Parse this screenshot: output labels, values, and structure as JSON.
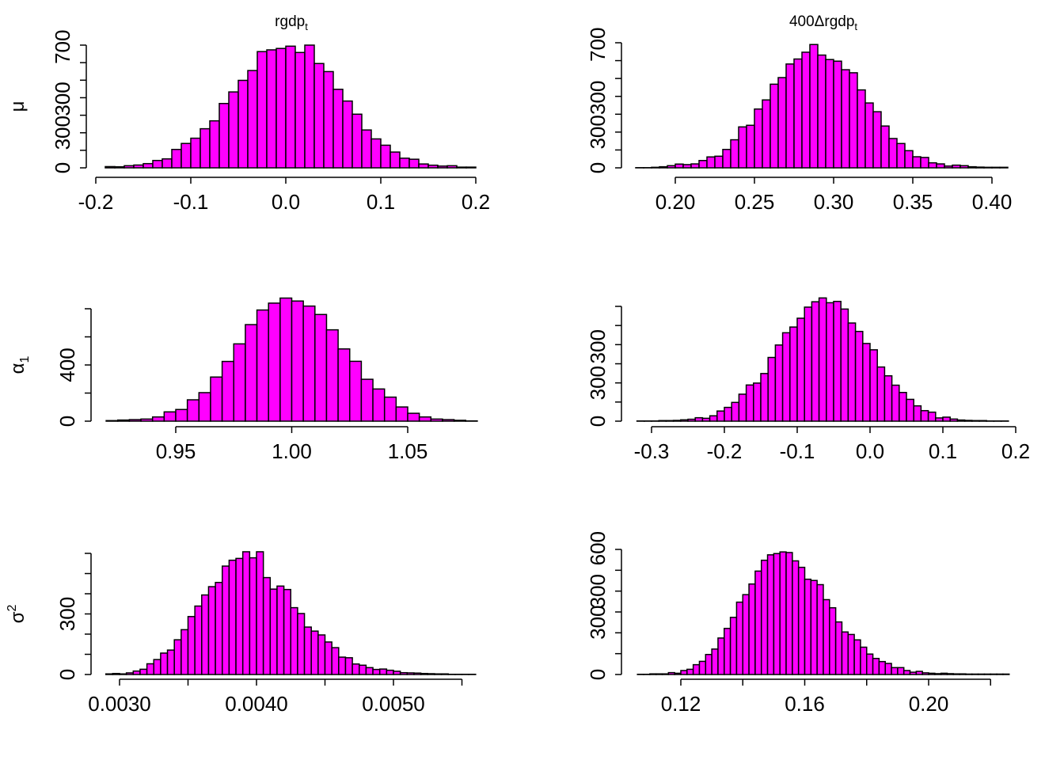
{
  "colors": {
    "bar_fill": "#ff00ff",
    "bar_edge": "#000000",
    "background": "#ffffff"
  },
  "chart_data": [
    {
      "type": "bar",
      "subtype": "histogram",
      "grid": false,
      "title": "rgdp",
      "title_sub": "t",
      "ylabel": "μ",
      "ylabel_script": "",
      "bin_start": -0.19,
      "bin_width": 0.01,
      "counts": [
        7,
        6,
        12,
        16,
        24,
        42,
        51,
        105,
        139,
        169,
        223,
        268,
        367,
        433,
        499,
        555,
        663,
        673,
        681,
        694,
        658,
        700,
        595,
        549,
        448,
        381,
        306,
        216,
        165,
        129,
        90,
        55,
        49,
        22,
        15,
        10,
        12,
        4,
        4
      ],
      "xlim": [
        -0.2,
        0.2
      ],
      "xticks": [
        {
          "v": -0.2,
          "label": "-0.2"
        },
        {
          "v": -0.1,
          "label": "-0.1"
        },
        {
          "v": 0.0,
          "label": "0.0"
        },
        {
          "v": 0.1,
          "label": "0.1"
        },
        {
          "v": 0.2,
          "label": "0.2"
        }
      ],
      "yticks": [
        0,
        100,
        200,
        300,
        400,
        500,
        600,
        700
      ],
      "ytick_labels": [
        {
          "v": 0,
          "label": "0"
        },
        {
          "v": 200,
          "label": "300"
        },
        {
          "v": 393,
          "label": "300"
        },
        {
          "v": 690,
          "label": "700"
        }
      ]
    },
    {
      "type": "bar",
      "subtype": "histogram",
      "grid": false,
      "title": "400Δrgdp",
      "title_sub": "t",
      "ylabel": "",
      "ylabel_script": "",
      "bin_start": 0.175,
      "bin_width": 0.005,
      "counts": [
        1,
        1,
        3,
        6,
        12,
        21,
        18,
        22,
        41,
        61,
        65,
        103,
        157,
        229,
        238,
        329,
        380,
        468,
        505,
        581,
        609,
        647,
        690,
        631,
        606,
        597,
        549,
        532,
        436,
        363,
        314,
        234,
        164,
        136,
        96,
        62,
        58,
        28,
        22,
        10,
        15,
        12,
        6,
        4,
        3,
        3,
        3
      ],
      "xlim": [
        0.2,
        0.4
      ],
      "xticks": [
        {
          "v": 0.2,
          "label": "0.20"
        },
        {
          "v": 0.25,
          "label": "0.25"
        },
        {
          "v": 0.3,
          "label": "0.30"
        },
        {
          "v": 0.35,
          "label": "0.35"
        },
        {
          "v": 0.4,
          "label": "0.40"
        }
      ],
      "yticks": [
        0,
        100,
        200,
        300,
        400,
        500,
        600,
        700
      ],
      "ytick_labels": [
        {
          "v": 0,
          "label": "0"
        },
        {
          "v": 200,
          "label": "300"
        },
        {
          "v": 393,
          "label": "300"
        },
        {
          "v": 690,
          "label": "700"
        }
      ]
    },
    {
      "type": "bar",
      "subtype": "histogram",
      "grid": false,
      "title": "",
      "title_sub": "",
      "ylabel": "α",
      "ylabel_script": "1",
      "ylabel_script_type": "sub",
      "bin_start": 0.92,
      "bin_width": 0.005,
      "counts": [
        4,
        8,
        11,
        15,
        30,
        66,
        83,
        152,
        203,
        314,
        425,
        550,
        687,
        791,
        840,
        876,
        855,
        819,
        759,
        650,
        514,
        426,
        298,
        229,
        171,
        101,
        56,
        30,
        15,
        11,
        6,
        2
      ],
      "xlim": [
        0.95,
        1.05
      ],
      "xticks": [
        {
          "v": 0.95,
          "label": "0.95"
        },
        {
          "v": 1.0,
          "label": "1.00"
        },
        {
          "v": 1.05,
          "label": "1.05"
        }
      ],
      "yticks": [
        0,
        200,
        400,
        600,
        800
      ],
      "ytick_labels": [
        {
          "v": 0,
          "label": "0"
        },
        {
          "v": 400,
          "label": "400"
        }
      ]
    },
    {
      "type": "bar",
      "subtype": "histogram",
      "grid": false,
      "title": "",
      "title_sub": "",
      "ylabel": "",
      "ylabel_script": "",
      "bin_start": -0.32,
      "bin_width": 0.01,
      "counts": [
        1,
        1,
        1,
        3,
        3,
        4,
        7,
        10,
        18,
        15,
        28,
        53,
        72,
        98,
        141,
        189,
        199,
        249,
        333,
        398,
        462,
        492,
        538,
        596,
        624,
        644,
        619,
        626,
        586,
        513,
        469,
        406,
        373,
        283,
        237,
        188,
        150,
        114,
        80,
        55,
        47,
        17,
        21,
        11,
        6,
        4,
        3,
        3,
        1,
        1,
        1
      ],
      "xlim": [
        -0.3,
        0.2
      ],
      "xticks": [
        {
          "v": -0.3,
          "label": "-0.3"
        },
        {
          "v": -0.2,
          "label": "-0.2"
        },
        {
          "v": -0.1,
          "label": "-0.1"
        },
        {
          "v": 0.0,
          "label": "0.0"
        },
        {
          "v": 0.1,
          "label": "0.1"
        },
        {
          "v": 0.2,
          "label": "0.2"
        }
      ],
      "yticks": [
        0,
        100,
        200,
        300,
        400,
        500,
        600
      ],
      "ytick_labels": [
        {
          "v": 0,
          "label": "0"
        },
        {
          "v": 200,
          "label": "300"
        },
        {
          "v": 390,
          "label": "300"
        }
      ]
    },
    {
      "type": "bar",
      "subtype": "histogram",
      "grid": false,
      "title": "",
      "title_sub": "",
      "ylabel": "σ",
      "ylabel_script": "2",
      "ylabel_script_type": "sup",
      "bin_start": 0.0029,
      "bin_width": 5e-05,
      "counts": [
        3,
        5,
        3,
        8,
        17,
        26,
        53,
        74,
        106,
        121,
        172,
        222,
        287,
        339,
        394,
        435,
        456,
        537,
        566,
        575,
        608,
        578,
        608,
        480,
        423,
        438,
        421,
        331,
        302,
        235,
        215,
        196,
        161,
        133,
        86,
        83,
        52,
        46,
        34,
        25,
        27,
        21,
        16,
        9,
        8,
        7,
        5,
        4,
        3,
        3,
        1,
        1,
        1,
        1
      ],
      "xlim": [
        0.003,
        0.0055
      ],
      "xticks": [
        {
          "v": 0.003,
          "label": "0.0030"
        },
        {
          "v": 0.0035,
          "label": ""
        },
        {
          "v": 0.004,
          "label": "0.0040"
        },
        {
          "v": 0.0045,
          "label": ""
        },
        {
          "v": 0.005,
          "label": "0.0050"
        },
        {
          "v": 0.0055,
          "label": ""
        }
      ],
      "yticks": [
        0,
        100,
        200,
        300,
        400,
        500,
        600
      ],
      "ytick_labels": [
        {
          "v": 0,
          "label": "0"
        },
        {
          "v": 300,
          "label": "300"
        }
      ]
    },
    {
      "type": "bar",
      "subtype": "histogram",
      "grid": false,
      "title": "",
      "title_sub": "",
      "ylabel": "",
      "ylabel_script": "",
      "bin_start": 0.106,
      "bin_width": 0.002,
      "counts": [
        1,
        1,
        3,
        3,
        3,
        9,
        6,
        19,
        25,
        47,
        63,
        96,
        122,
        175,
        221,
        274,
        347,
        383,
        434,
        496,
        548,
        574,
        580,
        588,
        585,
        545,
        514,
        457,
        451,
        431,
        359,
        320,
        252,
        204,
        192,
        166,
        131,
        98,
        77,
        62,
        53,
        33,
        33,
        19,
        11,
        15,
        8,
        6,
        4,
        6,
        4,
        3,
        3,
        2,
        2,
        2,
        2,
        2,
        2,
        2
      ],
      "xlim": [
        0.12,
        0.22
      ],
      "xticks": [
        {
          "v": 0.12,
          "label": "0.12"
        },
        {
          "v": 0.14,
          "label": ""
        },
        {
          "v": 0.16,
          "label": "0.16"
        },
        {
          "v": 0.18,
          "label": ""
        },
        {
          "v": 0.2,
          "label": "0.20"
        },
        {
          "v": 0.22,
          "label": ""
        }
      ],
      "yticks": [
        0,
        100,
        200,
        300,
        400,
        500,
        600
      ],
      "ytick_labels": [
        {
          "v": 0,
          "label": "0"
        },
        {
          "v": 250,
          "label": "300"
        },
        {
          "v": 400,
          "label": "300"
        },
        {
          "v": 605,
          "label": "600"
        }
      ]
    }
  ]
}
